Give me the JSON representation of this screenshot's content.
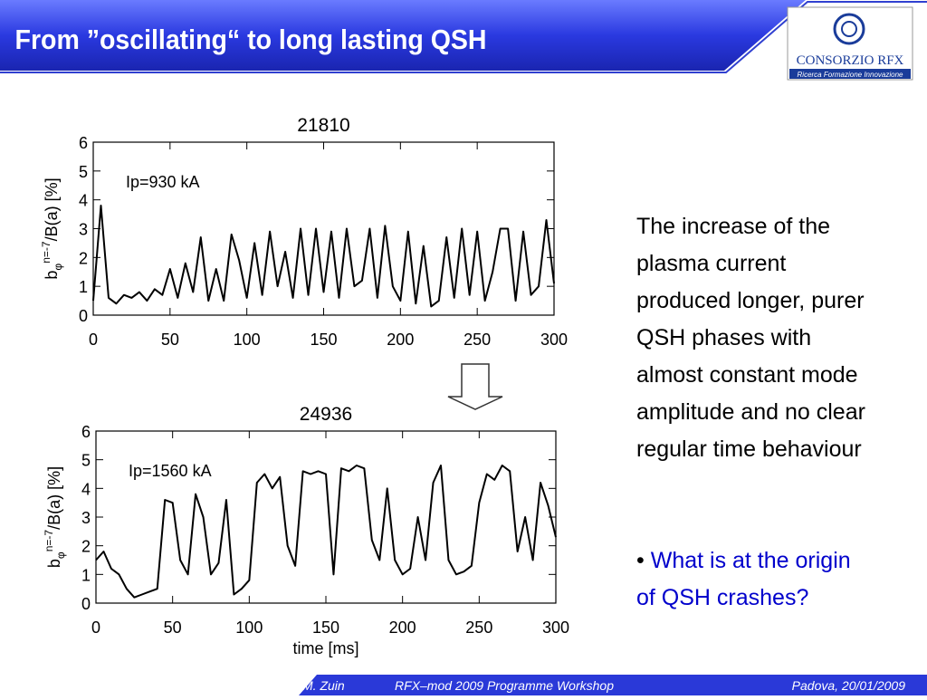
{
  "header": {
    "title": "From ”oscillating“  to long lasting QSH",
    "logo": {
      "name": "CONSORZIO RFX",
      "tagline": "Ricerca Formazione Innovazione"
    }
  },
  "chart_data": [
    {
      "type": "line",
      "title": "21810",
      "annotation": "Ip=930 kA",
      "ylabel": {
        "base": "b",
        "sub": "φ",
        "sup": "n=-7",
        "rest": "/B(a)  [%]"
      },
      "x": [
        0,
        5,
        10,
        15,
        20,
        25,
        30,
        35,
        40,
        45,
        50,
        55,
        60,
        65,
        70,
        75,
        80,
        85,
        90,
        95,
        100,
        105,
        110,
        115,
        120,
        125,
        130,
        135,
        140,
        145,
        150,
        155,
        160,
        165,
        170,
        175,
        180,
        185,
        190,
        195,
        200,
        205,
        210,
        215,
        220,
        225,
        230,
        235,
        240,
        245,
        250,
        255,
        260,
        265,
        270,
        275,
        280,
        285,
        290,
        295,
        300
      ],
      "series": [
        {
          "color": "#000000",
          "values": [
            0.5,
            3.8,
            0.6,
            0.4,
            0.7,
            0.6,
            0.8,
            0.5,
            0.9,
            0.7,
            1.6,
            0.6,
            1.8,
            0.8,
            2.7,
            0.5,
            1.6,
            0.5,
            2.8,
            1.9,
            0.6,
            2.5,
            0.7,
            2.9,
            1.0,
            2.2,
            0.6,
            3.0,
            0.7,
            3.0,
            0.8,
            2.9,
            0.6,
            3.0,
            1.0,
            1.2,
            3.0,
            0.6,
            3.1,
            1.0,
            0.5,
            2.9,
            0.4,
            2.4,
            0.3,
            0.5,
            2.7,
            0.6,
            3.0,
            0.7,
            2.9,
            0.5,
            1.5,
            3.0,
            3.0,
            0.5,
            2.9,
            0.7,
            1.0,
            3.3,
            1.1
          ]
        }
      ],
      "xlim": [
        0,
        300
      ],
      "xticks": [
        0,
        50,
        100,
        150,
        200,
        250,
        300
      ],
      "ylim": [
        0,
        6
      ],
      "yticks": [
        0,
        1,
        2,
        3,
        4,
        5,
        6
      ]
    },
    {
      "type": "line",
      "title": "24936",
      "annotation": "Ip=1560 kA",
      "xlabel": "time  [ms]",
      "ylabel": {
        "base": "b",
        "sub": "φ",
        "sup": "n=-7",
        "rest": "/B(a)  [%]"
      },
      "x": [
        0,
        5,
        10,
        15,
        20,
        25,
        30,
        35,
        40,
        45,
        50,
        55,
        60,
        65,
        70,
        75,
        80,
        85,
        90,
        95,
        100,
        105,
        110,
        115,
        120,
        125,
        130,
        135,
        140,
        145,
        150,
        155,
        160,
        165,
        170,
        175,
        180,
        185,
        190,
        195,
        200,
        205,
        210,
        215,
        220,
        225,
        230,
        235,
        240,
        245,
        250,
        255,
        260,
        265,
        270,
        275,
        280,
        285,
        290,
        295,
        300
      ],
      "series": [
        {
          "color": "#000000",
          "values": [
            1.5,
            1.8,
            1.2,
            1.0,
            0.5,
            0.2,
            0.3,
            0.4,
            0.5,
            3.6,
            3.5,
            1.5,
            1.0,
            3.8,
            3.0,
            1.0,
            1.4,
            3.6,
            0.3,
            0.5,
            0.8,
            4.2,
            4.5,
            4.0,
            4.4,
            2.0,
            1.3,
            4.6,
            4.5,
            4.6,
            4.5,
            1.0,
            4.7,
            4.6,
            4.8,
            4.7,
            2.2,
            1.5,
            4.0,
            1.5,
            1.0,
            1.2,
            3.0,
            1.5,
            4.2,
            4.8,
            1.5,
            1.0,
            1.1,
            1.3,
            3.5,
            4.5,
            4.3,
            4.8,
            4.6,
            1.8,
            3.0,
            1.5,
            4.2,
            3.4,
            2.3
          ]
        }
      ],
      "xlim": [
        0,
        300
      ],
      "xticks": [
        0,
        50,
        100,
        150,
        200,
        250,
        300
      ],
      "ylim": [
        0,
        6
      ],
      "yticks": [
        0,
        1,
        2,
        3,
        4,
        5,
        6
      ]
    }
  ],
  "body": {
    "lines": [
      "The increase of the",
      "plasma current",
      "produced longer, purer",
      "QSH phases with",
      "almost constant mode",
      "amplitude and no clear",
      "regular time behaviour"
    ],
    "bullet": {
      "marker": "•",
      "lines": [
        "What is at the origin",
        "of QSH crashes?"
      ]
    }
  },
  "footer": {
    "author": "M. Zuin",
    "event": "RFX–mod 2009 Programme Workshop",
    "place_date": "Padova, 20/01/2009"
  }
}
